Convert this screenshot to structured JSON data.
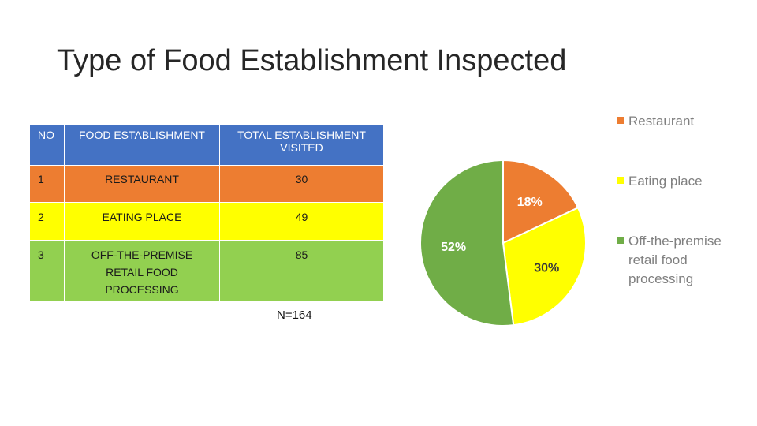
{
  "title": "Type of Food Establishment Inspected",
  "table": {
    "headers": [
      "NO",
      "FOOD ESTABLISHMENT",
      "TOTAL ESTABLISHMENT VISITED"
    ],
    "rows": [
      {
        "no": "1",
        "establishment": "RESTAURANT",
        "total": "30"
      },
      {
        "no": "2",
        "establishment": "EATING PLACE",
        "total": "49"
      },
      {
        "no": "3",
        "establishment": "OFF-THE-PREMISE RETAIL FOOD PROCESSING",
        "total": "85"
      }
    ],
    "row_colors": [
      "#ed7d31",
      "#ffff00",
      "#92d050"
    ],
    "header_color": "#4472c4"
  },
  "total_note": "N=164",
  "chart_data": {
    "type": "pie",
    "title": "",
    "slices": [
      {
        "label": "Restaurant",
        "value": 18,
        "display": "18%",
        "color": "#ed7d31"
      },
      {
        "label": "Eating place",
        "value": 30,
        "display": "30%",
        "color": "#ffff00"
      },
      {
        "label": "Off-the-premise retail food processing",
        "value": 52,
        "display": "52%",
        "color": "#70ad47"
      }
    ],
    "legend_position": "right",
    "start_angle_deg": 0,
    "direction": "clockwise"
  },
  "legend": {
    "items": [
      {
        "label": "Restaurant",
        "color": "#ed7d31"
      },
      {
        "label": "Eating place",
        "color": "#ffff00"
      },
      {
        "label": "Off-the-premise retail food processing",
        "color": "#70ad47"
      }
    ]
  }
}
